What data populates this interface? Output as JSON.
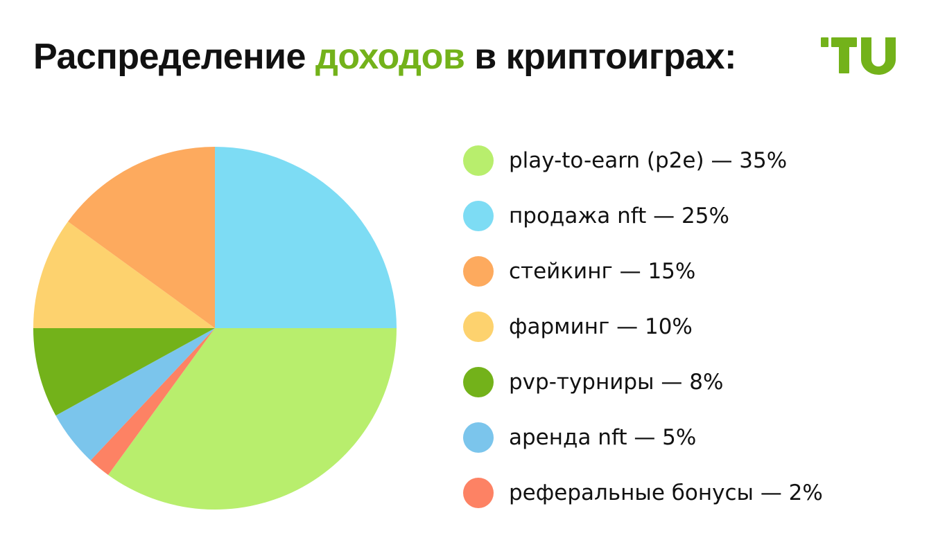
{
  "title": {
    "before": "Распределение ",
    "accent": "доходов",
    "after": " в криптоиграх:"
  },
  "logo": {
    "text": "TU",
    "color": "#73b21a"
  },
  "chart_data": {
    "type": "pie",
    "title": "Распределение доходов в криптоиграх:",
    "slices": [
      {
        "label": "play-to-earn (p2e) — 35%",
        "value": 35,
        "color": "#b8ee6d"
      },
      {
        "label": "продажа nft — 25%",
        "value": 25,
        "color": "#7ddcf4"
      },
      {
        "label": "стейкинг — 15%",
        "value": 15,
        "color": "#fdaa5e"
      },
      {
        "label": "фарминг — 10%",
        "value": 10,
        "color": "#fdd26e"
      },
      {
        "label": "pvp-турниры — 8%",
        "value": 8,
        "color": "#73b21a"
      },
      {
        "label": "аренда nft — 5%",
        "value": 5,
        "color": "#7bc5ec"
      },
      {
        "label": "реферальные бонусы — 2%",
        "value": 2,
        "color": "#fd8264"
      }
    ],
    "legend_position": "right"
  }
}
